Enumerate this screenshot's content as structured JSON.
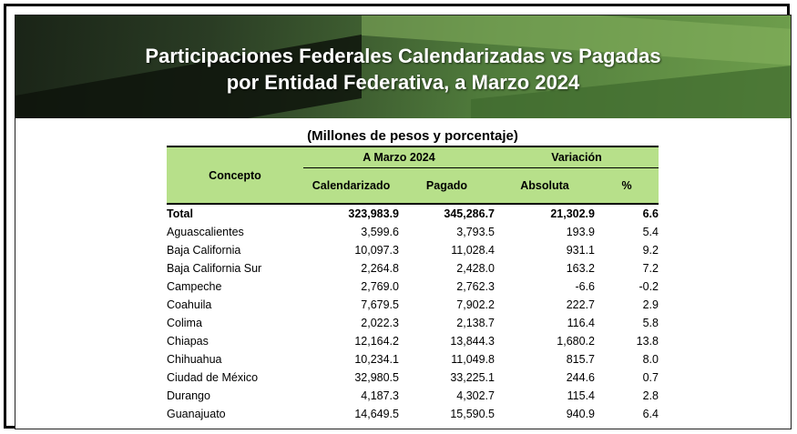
{
  "header": {
    "title_line1": "Participaciones Federales Calendarizadas vs Pagadas",
    "title_line2": "por Entidad Federativa, a Marzo 2024"
  },
  "table": {
    "subtitle": "(Millones de pesos y porcentaje)",
    "columns": {
      "concepto": "Concepto",
      "group_a": "A Marzo 2024",
      "group_b": "Variación",
      "calendarizado": "Calendarizado",
      "pagado": "Pagado",
      "absoluta": "Absoluta",
      "pct": "%"
    },
    "total": {
      "name": "Total",
      "calendarizado": "323,983.9",
      "pagado": "345,286.7",
      "absoluta": "21,302.9",
      "pct": "6.6"
    },
    "rows": [
      {
        "name": "Aguascalientes",
        "calendarizado": "3,599.6",
        "pagado": "3,793.5",
        "absoluta": "193.9",
        "pct": "5.4"
      },
      {
        "name": "Baja California",
        "calendarizado": "10,097.3",
        "pagado": "11,028.4",
        "absoluta": "931.1",
        "pct": "9.2"
      },
      {
        "name": "Baja California Sur",
        "calendarizado": "2,264.8",
        "pagado": "2,428.0",
        "absoluta": "163.2",
        "pct": "7.2"
      },
      {
        "name": "Campeche",
        "calendarizado": "2,769.0",
        "pagado": "2,762.3",
        "absoluta": "-6.6",
        "pct": "-0.2"
      },
      {
        "name": "Coahuila",
        "calendarizado": "7,679.5",
        "pagado": "7,902.2",
        "absoluta": "222.7",
        "pct": "2.9"
      },
      {
        "name": "Colima",
        "calendarizado": "2,022.3",
        "pagado": "2,138.7",
        "absoluta": "116.4",
        "pct": "5.8"
      },
      {
        "name": "Chiapas",
        "calendarizado": "12,164.2",
        "pagado": "13,844.3",
        "absoluta": "1,680.2",
        "pct": "13.8"
      },
      {
        "name": "Chihuahua",
        "calendarizado": "10,234.1",
        "pagado": "11,049.8",
        "absoluta": "815.7",
        "pct": "8.0"
      },
      {
        "name": "Ciudad de México",
        "calendarizado": "32,980.5",
        "pagado": "33,225.1",
        "absoluta": "244.6",
        "pct": "0.7"
      },
      {
        "name": "Durango",
        "calendarizado": "4,187.3",
        "pagado": "4,302.7",
        "absoluta": "115.4",
        "pct": "2.8"
      },
      {
        "name": "Guanajuato",
        "calendarizado": "14,649.5",
        "pagado": "15,590.5",
        "absoluta": "940.9",
        "pct": "6.4"
      }
    ]
  }
}
